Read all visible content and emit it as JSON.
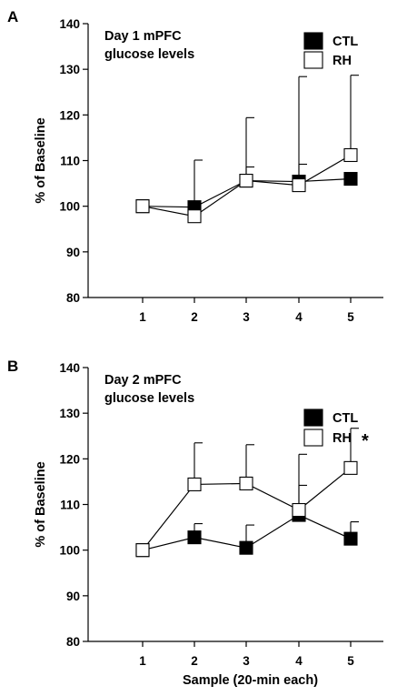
{
  "chart_data": [
    {
      "type": "line",
      "panel_label": "A",
      "title_lines": [
        "Day 1 mPFC",
        "glucose levels"
      ],
      "ylabel": "% of Baseline",
      "xlabel": "",
      "ylim": [
        80,
        140
      ],
      "yticks": [
        80,
        90,
        100,
        110,
        120,
        130,
        140
      ],
      "categories": [
        "1",
        "2",
        "3",
        "4",
        "5"
      ],
      "legend_position": "top-right",
      "grid": false,
      "series": [
        {
          "name": "CTL",
          "marker": "filled-square",
          "color": "#000000",
          "values": [
            100,
            99.8,
            105.6,
            105.4,
            106
          ],
          "error_upper": [
            0,
            10.3,
            3,
            3.8,
            0
          ],
          "significance": ""
        },
        {
          "name": "RH",
          "marker": "open-square",
          "color": "#ffffff",
          "values": [
            100,
            97.8,
            105.6,
            104.6,
            111.2
          ],
          "error_upper": [
            0,
            0,
            13.8,
            23.8,
            17.5
          ],
          "significance": ""
        }
      ]
    },
    {
      "type": "line",
      "panel_label": "B",
      "title_lines": [
        "Day 2 mPFC",
        "glucose levels"
      ],
      "ylabel": "% of Baseline",
      "xlabel": "Sample (20-min each)",
      "ylim": [
        80,
        140
      ],
      "yticks": [
        80,
        90,
        100,
        110,
        120,
        130,
        140
      ],
      "categories": [
        "1",
        "2",
        "3",
        "4",
        "5"
      ],
      "legend_position": "top-right",
      "grid": false,
      "series": [
        {
          "name": "CTL",
          "marker": "filled-square",
          "color": "#000000",
          "values": [
            100,
            102.8,
            100.5,
            107.7,
            102.5
          ],
          "error_upper": [
            0,
            3,
            5,
            6.5,
            3.7
          ],
          "significance": ""
        },
        {
          "name": "RH",
          "marker": "open-square",
          "color": "#ffffff",
          "values": [
            100,
            114.4,
            114.6,
            108.8,
            118
          ],
          "error_upper": [
            0,
            9.1,
            8.5,
            12.2,
            8.7
          ],
          "significance": "*"
        }
      ]
    }
  ]
}
